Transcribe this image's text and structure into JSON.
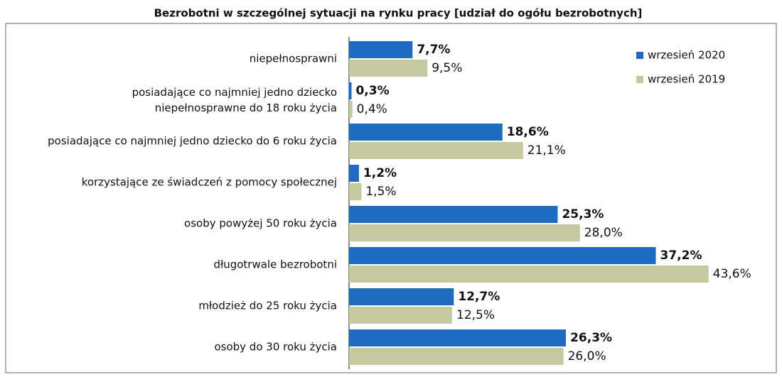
{
  "chart_data": {
    "type": "bar",
    "orientation": "horizontal",
    "title": "Bezrobotni w szczególnej sytuacji na rynku pracy [udział do ogółu bezrobotnych]",
    "categories": [
      "niepełnosprawni",
      "posiadające co najmniej jedno dziecko\nniepełnosprawne do 18 roku życia",
      "posiadające co najmniej jedno dziecko do 6 roku życia",
      "korzystające ze świadczeń z pomocy społecznej",
      "osoby powyżej 50 roku życia",
      "długotrwale bezrobotni",
      "młodzież do 25 roku życia",
      "osoby do 30 roku życia"
    ],
    "series": [
      {
        "name": "wrzesień 2020",
        "color": "#1f6bbf",
        "values": [
          7.7,
          0.3,
          18.6,
          1.2,
          25.3,
          37.2,
          12.7,
          26.3
        ],
        "value_labels": [
          "7,7%",
          "0,3%",
          "18,6%",
          "1,2%",
          "25,3%",
          "37,2%",
          "12,7%",
          "26,3%"
        ]
      },
      {
        "name": "wrzesień 2019",
        "color": "#c4c9a0",
        "values": [
          9.5,
          0.4,
          21.1,
          1.5,
          28.0,
          43.6,
          12.5,
          26.0
        ],
        "value_labels": [
          "9,5%",
          "0,4%",
          "21,1%",
          "1,5%",
          "28,0%",
          "43,6%",
          "12,5%",
          "26,0%"
        ]
      }
    ],
    "xlim": [
      0,
      50
    ],
    "legend": "top-right"
  }
}
